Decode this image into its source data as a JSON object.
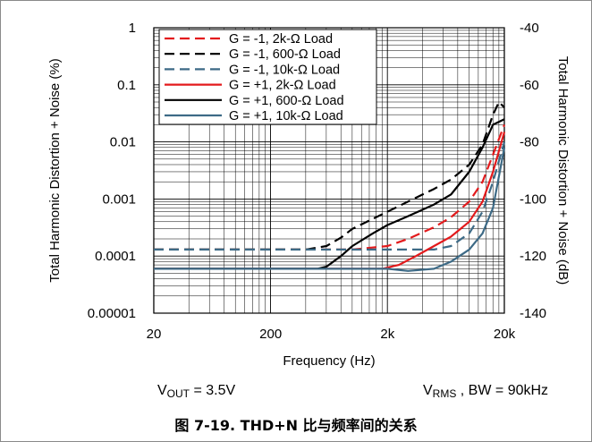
{
  "chart_data": {
    "type": "line",
    "xlabel": "Frequency (Hz)",
    "ylabel_left": "Total Harmonic Distortion + Noise (%)",
    "ylabel_right": "Total Harmonic Distortion + Noise (dB)",
    "x_scale": "log",
    "y_scale": "log",
    "xlim": [
      20,
      20000
    ],
    "ylim": [
      1e-05,
      1
    ],
    "ylim_right": [
      -140,
      -40
    ],
    "x_ticks": [
      {
        "value": 20,
        "label": "20"
      },
      {
        "value": 200,
        "label": "200"
      },
      {
        "value": 2000,
        "label": "2k"
      },
      {
        "value": 20000,
        "label": "20k"
      }
    ],
    "y_ticks_left": [
      {
        "value": 1,
        "label": "1"
      },
      {
        "value": 0.1,
        "label": "0.1"
      },
      {
        "value": 0.01,
        "label": "0.01"
      },
      {
        "value": 0.001,
        "label": "0.001"
      },
      {
        "value": 0.0001,
        "label": "0.0001"
      },
      {
        "value": 1e-05,
        "label": "0.00001"
      }
    ],
    "y_ticks_right": [
      "-40",
      "-60",
      "-80",
      "-100",
      "-120",
      "-140"
    ],
    "grid": true,
    "legend_position": "top-left",
    "series": [
      {
        "name": "G = -1, 2k-Ω Load",
        "color": "#e31a1c",
        "style": "dashed",
        "x": [
          20,
          50,
          100,
          200,
          500,
          1000,
          2000,
          3000,
          5000,
          7000,
          10000,
          13000,
          16000,
          20000
        ],
        "y": [
          0.00013,
          0.00013,
          0.00013,
          0.00013,
          0.00013,
          0.00013,
          0.00015,
          0.0002,
          0.00032,
          0.00048,
          0.0009,
          0.002,
          0.006,
          0.02
        ]
      },
      {
        "name": "G = -1, 600-Ω Load",
        "color": "#000000",
        "style": "dashed",
        "x": [
          20,
          50,
          100,
          200,
          400,
          600,
          800,
          1000,
          1500,
          2000,
          3000,
          5000,
          7000,
          10000,
          13000,
          16000,
          18000,
          20000
        ],
        "y": [
          0.00013,
          0.00013,
          0.00013,
          0.00013,
          0.00013,
          0.00015,
          0.00021,
          0.0003,
          0.00045,
          0.0006,
          0.0009,
          0.0015,
          0.0022,
          0.004,
          0.009,
          0.03,
          0.05,
          0.04
        ]
      },
      {
        "name": "G = -1, 10k-Ω Load",
        "color": "#3d6a86",
        "style": "dashed",
        "x": [
          20,
          50,
          100,
          200,
          500,
          1000,
          2000,
          3000,
          5000,
          7000,
          10000,
          13000,
          16000,
          20000
        ],
        "y": [
          0.00013,
          0.00013,
          0.00013,
          0.00013,
          0.00013,
          0.00013,
          0.00013,
          0.00013,
          0.00013,
          0.00015,
          0.00025,
          0.0006,
          0.002,
          0.01
        ]
      },
      {
        "name": "G = +1, 2k-Ω Load",
        "color": "#e31a1c",
        "style": "solid",
        "x": [
          20,
          50,
          100,
          200,
          500,
          1000,
          1800,
          2500,
          3500,
          5000,
          7000,
          10000,
          13000,
          16000,
          20000
        ],
        "y": [
          6e-05,
          6e-05,
          6e-05,
          6e-05,
          6e-05,
          6e-05,
          6e-05,
          7e-05,
          0.0001,
          0.00015,
          0.00022,
          0.0004,
          0.0009,
          0.003,
          0.015
        ]
      },
      {
        "name": "G = +1, 600-Ω Load",
        "color": "#000000",
        "style": "solid",
        "x": [
          20,
          50,
          100,
          200,
          500,
          600,
          800,
          1000,
          1500,
          2000,
          3000,
          5000,
          7000,
          10000,
          13000,
          16000,
          20000
        ],
        "y": [
          6e-05,
          6e-05,
          6e-05,
          6e-05,
          6e-05,
          6.5e-05,
          0.0001,
          0.00015,
          0.00025,
          0.00035,
          0.0005,
          0.0008,
          0.0012,
          0.003,
          0.008,
          0.02,
          0.025
        ]
      },
      {
        "name": "G = +1, 10k-Ω Load",
        "color": "#3d6a86",
        "style": "solid",
        "x": [
          20,
          50,
          100,
          200,
          500,
          1000,
          2000,
          3000,
          5000,
          7000,
          10000,
          13000,
          16000,
          20000
        ],
        "y": [
          6e-05,
          6e-05,
          6e-05,
          6e-05,
          6e-05,
          6e-05,
          6e-05,
          5.5e-05,
          6e-05,
          8e-05,
          0.00013,
          0.00025,
          0.0007,
          0.008
        ]
      }
    ]
  },
  "annotations": {
    "vout_main": "V",
    "vout_sub": "OUT",
    "vout_value": " = 3.5V",
    "vrms_main": "V",
    "vrms_sub": "RMS",
    "vrms_value": " , BW = 90kHz"
  },
  "caption": "图 7-19. THD+N 比与频率间的关系"
}
